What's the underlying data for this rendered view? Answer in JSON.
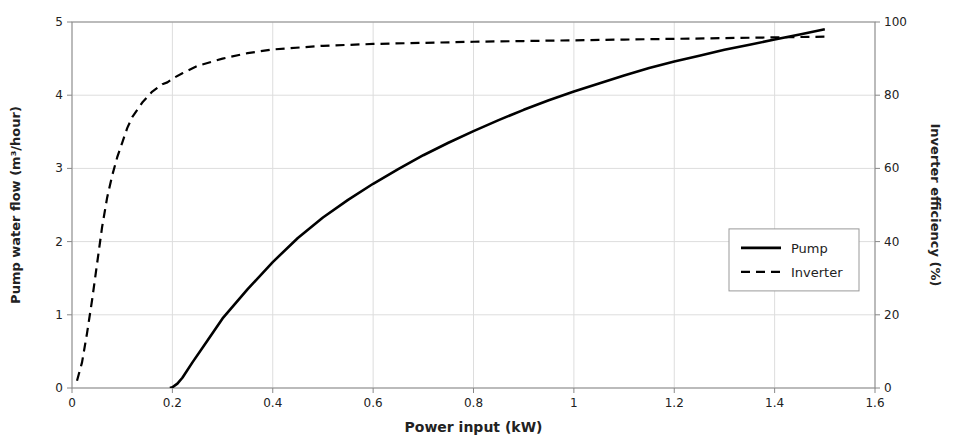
{
  "chart_data": {
    "type": "line",
    "xlabel": "Power input (kW)",
    "ylabel": "Pump water flow (m³/hour)",
    "y2label": "Inverter efficiency (%)",
    "series": [
      {
        "name": "Pump",
        "color": "#000000",
        "line_style": "solid",
        "x": [
          0.195,
          0.2,
          0.21,
          0.22,
          0.24,
          0.27,
          0.3,
          0.35,
          0.4,
          0.45,
          0.5,
          0.55,
          0.6,
          0.65,
          0.7,
          0.75,
          0.8,
          0.85,
          0.9,
          0.95,
          1.0,
          1.05,
          1.1,
          1.15,
          1.2,
          1.25,
          1.3,
          1.35,
          1.4,
          1.45,
          1.5
        ],
        "values": [
          0.0,
          0.01,
          0.06,
          0.14,
          0.35,
          0.65,
          0.95,
          1.35,
          1.72,
          2.05,
          2.33,
          2.57,
          2.79,
          2.99,
          3.18,
          3.35,
          3.51,
          3.66,
          3.8,
          3.93,
          4.05,
          4.16,
          4.27,
          4.37,
          4.46,
          4.54,
          4.62,
          4.69,
          4.76,
          4.83,
          4.9
        ]
      },
      {
        "name": "Inverter",
        "color": "#000000",
        "line_style": "dashed",
        "axis": "y2",
        "x": [
          0.01,
          0.02,
          0.03,
          0.04,
          0.05,
          0.06,
          0.07,
          0.08,
          0.09,
          0.1,
          0.11,
          0.12,
          0.13,
          0.14,
          0.15,
          0.16,
          0.17,
          0.18,
          0.19,
          0.2,
          0.22,
          0.25,
          0.3,
          0.35,
          0.4,
          0.5,
          0.6,
          0.7,
          0.8,
          0.9,
          1.0,
          1.1,
          1.2,
          1.3,
          1.4,
          1.5
        ],
        "values": [
          2,
          7,
          15,
          24,
          34,
          44,
          52,
          58,
          63,
          67,
          71,
          74,
          76,
          78,
          79.5,
          81,
          82,
          83,
          83.5,
          84.5,
          86,
          88,
          90,
          91.5,
          92.5,
          93.5,
          94.0,
          94.3,
          94.6,
          94.8,
          95.0,
          95.2,
          95.4,
          95.6,
          95.8,
          96.0
        ]
      }
    ],
    "xlim": [
      0,
      1.6
    ],
    "xticks": [
      0,
      0.2,
      0.4,
      0.6,
      0.8,
      1,
      1.2,
      1.4,
      1.6
    ],
    "ylim": [
      0,
      5
    ],
    "yticks": [
      0,
      1,
      2,
      3,
      4,
      5
    ],
    "y2lim": [
      0,
      100
    ],
    "y2ticks": [
      0,
      20,
      40,
      60,
      80,
      100
    ],
    "grid": true,
    "legend": "right"
  }
}
